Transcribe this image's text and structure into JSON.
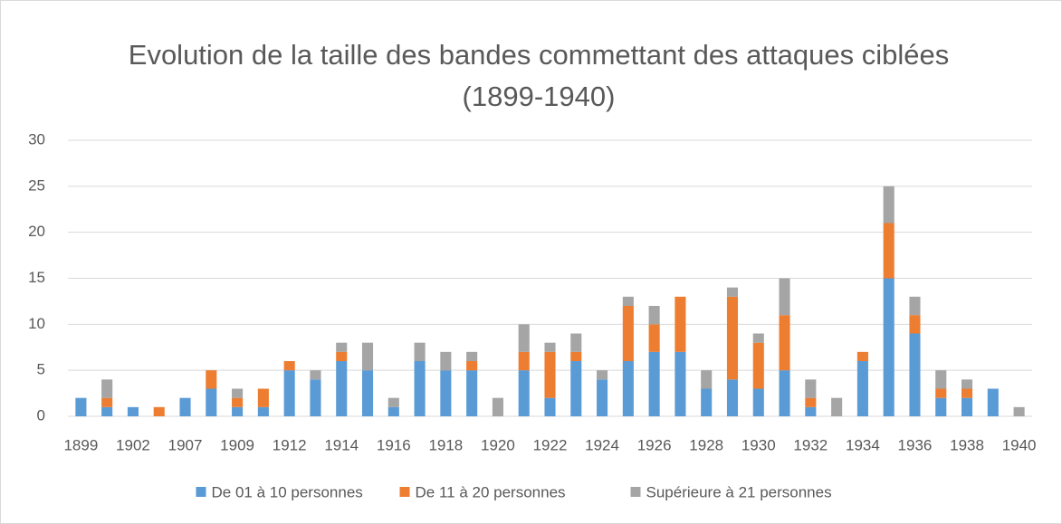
{
  "chart_data": {
    "type": "stacked_bar",
    "title": "Evolution de la taille des bandes commettant des attaques ciblées (1899-1940)",
    "categories": [
      "1899",
      null,
      "1902",
      null,
      "1907",
      null,
      "1909",
      null,
      "1912",
      null,
      "1914",
      null,
      "1916",
      null,
      "1918",
      null,
      "1920",
      null,
      "1922",
      null,
      "1924",
      null,
      "1926",
      null,
      "1928",
      null,
      "1930",
      null,
      "1932",
      null,
      "1934",
      null,
      "1936",
      null,
      "1938",
      null,
      "1940"
    ],
    "series": [
      {
        "name": "De 01 à 10 personnes",
        "color": "#5b9bd5",
        "values": [
          2,
          1,
          1,
          0,
          2,
          3,
          1,
          1,
          5,
          4,
          6,
          5,
          1,
          6,
          5,
          5,
          0,
          5,
          2,
          6,
          4,
          6,
          7,
          7,
          3,
          4,
          3,
          5,
          1,
          0,
          6,
          15,
          9,
          2,
          2,
          3,
          0
        ]
      },
      {
        "name": "De 11 à 20 personnes",
        "color": "#ed7d31",
        "values": [
          0,
          1,
          0,
          1,
          0,
          2,
          1,
          2,
          1,
          0,
          1,
          0,
          0,
          0,
          0,
          1,
          0,
          2,
          5,
          1,
          0,
          6,
          3,
          6,
          0,
          9,
          5,
          6,
          1,
          0,
          1,
          6,
          2,
          1,
          1,
          0,
          0
        ]
      },
      {
        "name": "Supérieure à 21 personnes",
        "color": "#a5a5a5",
        "values": [
          0,
          2,
          0,
          0,
          0,
          0,
          1,
          0,
          0,
          1,
          1,
          3,
          1,
          2,
          2,
          1,
          2,
          3,
          1,
          2,
          1,
          1,
          2,
          0,
          2,
          1,
          1,
          4,
          2,
          2,
          0,
          4,
          2,
          2,
          1,
          0,
          1
        ]
      }
    ],
    "ylim": [
      0,
      30
    ],
    "yticks": [
      0,
      5,
      10,
      15,
      20,
      25,
      30
    ],
    "grid": true,
    "legend": "bottom"
  }
}
